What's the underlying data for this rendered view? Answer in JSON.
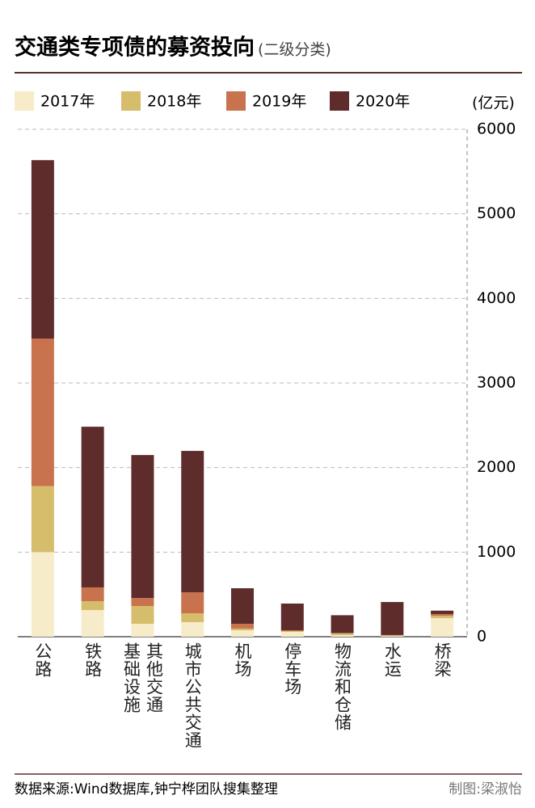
{
  "chart_data": {
    "type": "bar",
    "stacked": true,
    "title": "交通类专项债的募资投向",
    "subtitle": "(二级分类)",
    "y_label": "(亿元)",
    "categories": [
      "公路",
      "铁路",
      "其他交通基础设施",
      "城市公共交通",
      "机场",
      "停车场",
      "物流和仓储",
      "水运",
      "桥梁"
    ],
    "series": [
      {
        "name": "2017年",
        "color": "#f7ecc9",
        "values": [
          1000,
          315,
          153,
          172,
          76,
          57,
          19,
          10,
          220
        ]
      },
      {
        "name": "2018年",
        "color": "#d6bd6c",
        "values": [
          780,
          105,
          210,
          105,
          20,
          10,
          20,
          5,
          28
        ]
      },
      {
        "name": "2019年",
        "color": "#c8734e",
        "values": [
          1745,
          163,
          95,
          248,
          57,
          9,
          5,
          5,
          20
        ]
      },
      {
        "name": "2020年",
        "color": "#5e2c2b",
        "values": [
          2110,
          1900,
          1690,
          1672,
          420,
          316,
          210,
          390,
          40
        ]
      }
    ],
    "ylim": [
      0,
      6000
    ],
    "yticks": [
      0,
      1000,
      2000,
      3000,
      4000,
      5000,
      6000
    ],
    "grid": true,
    "source": "数据来源:Wind数据库,钟宁桦团队搜集整理",
    "credit": "制图:梁淑怡"
  }
}
